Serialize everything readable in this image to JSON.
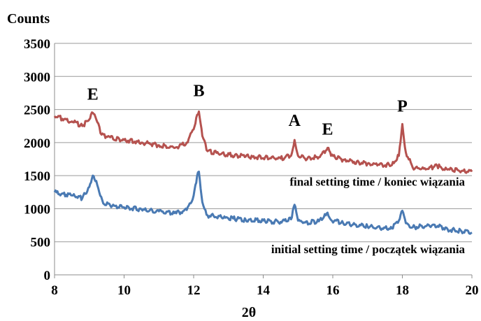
{
  "chart_data": {
    "type": "line",
    "ylabel": "Counts",
    "xlabel": "2θ",
    "xlim": [
      8,
      20
    ],
    "ylim": [
      0,
      3500
    ],
    "xticks": [
      "8",
      "10",
      "12",
      "14",
      "16",
      "18",
      "20"
    ],
    "yticks": [
      "0",
      "500",
      "1000",
      "1500",
      "2000",
      "2500",
      "3000",
      "3500"
    ],
    "grid": "horizontal",
    "series": [
      {
        "name": "final setting time / koniec wiązania",
        "color": "#b5524f",
        "x": [
          8.0,
          8.5,
          8.8,
          9.0,
          9.1,
          9.2,
          9.35,
          9.6,
          10.0,
          10.5,
          11.0,
          11.5,
          11.8,
          12.0,
          12.1,
          12.15,
          12.25,
          12.4,
          12.8,
          13.5,
          14.5,
          14.8,
          14.9,
          15.0,
          15.2,
          15.6,
          15.8,
          15.85,
          15.95,
          16.3,
          17.0,
          17.7,
          17.9,
          18.0,
          18.1,
          18.3,
          18.7,
          19.0,
          19.3,
          19.7,
          20.0
        ],
        "values": [
          2400,
          2320,
          2250,
          2350,
          2450,
          2350,
          2120,
          2080,
          2040,
          2000,
          1960,
          1930,
          2000,
          2200,
          2420,
          2470,
          2100,
          1870,
          1830,
          1790,
          1760,
          1800,
          2040,
          1800,
          1760,
          1780,
          1880,
          1920,
          1800,
          1740,
          1680,
          1660,
          1800,
          2280,
          1850,
          1620,
          1600,
          1650,
          1590,
          1570,
          1560
        ]
      },
      {
        "name": "initial setting time / początek wiązania",
        "color": "#4a7ab3",
        "x": [
          8.0,
          8.5,
          8.8,
          9.0,
          9.1,
          9.2,
          9.4,
          9.6,
          10.0,
          10.5,
          11.0,
          11.5,
          11.8,
          12.0,
          12.1,
          12.15,
          12.25,
          12.4,
          12.8,
          13.5,
          14.5,
          14.8,
          14.9,
          15.0,
          15.2,
          15.6,
          15.8,
          15.85,
          15.95,
          16.3,
          17.0,
          17.7,
          17.9,
          18.0,
          18.1,
          18.3,
          18.7,
          18.9,
          19.3,
          19.7,
          20.0
        ],
        "values": [
          1250,
          1200,
          1160,
          1330,
          1500,
          1420,
          1080,
          1050,
          1020,
          990,
          960,
          930,
          980,
          1200,
          1500,
          1560,
          1100,
          900,
          870,
          830,
          800,
          840,
          1060,
          820,
          790,
          810,
          900,
          940,
          830,
          780,
          730,
          700,
          820,
          970,
          780,
          720,
          740,
          760,
          690,
          660,
          640
        ]
      }
    ],
    "peak_labels": [
      {
        "text": "E",
        "x": 9.1,
        "y": 2650
      },
      {
        "text": "B",
        "x": 12.15,
        "y": 2700
      },
      {
        "text": "A",
        "x": 14.9,
        "y": 2250
      },
      {
        "text": "E",
        "x": 15.85,
        "y": 2120
      },
      {
        "text": "P",
        "x": 18.0,
        "y": 2470
      }
    ],
    "annotations": [
      {
        "text": "final setting time / koniec wiązania",
        "x": 19.8,
        "y": 1350
      },
      {
        "text": "initial setting time / początek wiązania",
        "x": 19.8,
        "y": 330
      }
    ]
  }
}
